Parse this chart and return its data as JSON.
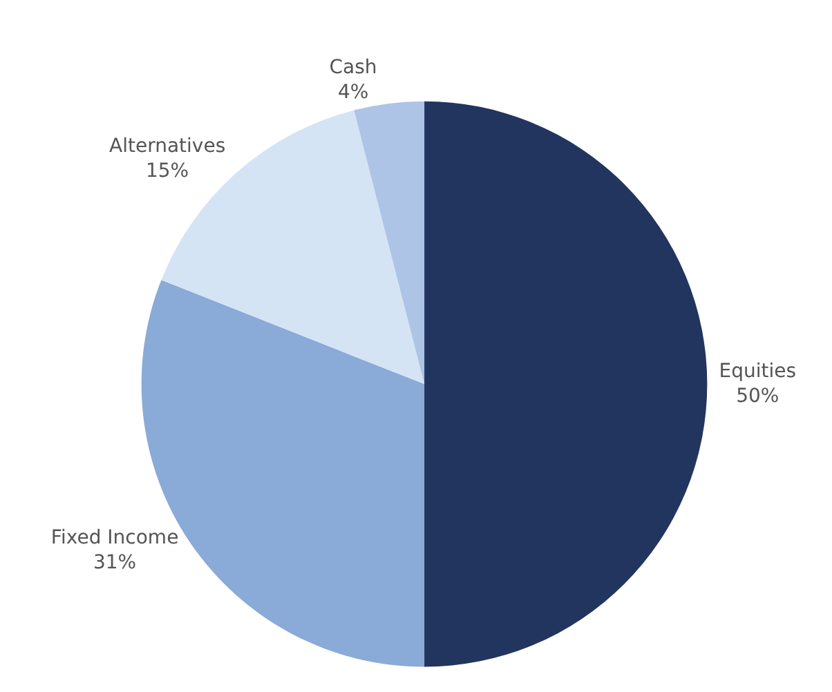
{
  "chart_data": {
    "type": "pie",
    "categories": [
      "Equities",
      "Fixed Income",
      "Alternatives",
      "Cash"
    ],
    "values": [
      50,
      31,
      15,
      4
    ],
    "value_labels": [
      "50%",
      "31%",
      "15%",
      "4%"
    ],
    "colors": [
      "#22355e",
      "#8aaad8",
      "#d4e4f5",
      "#aec4e6"
    ]
  }
}
